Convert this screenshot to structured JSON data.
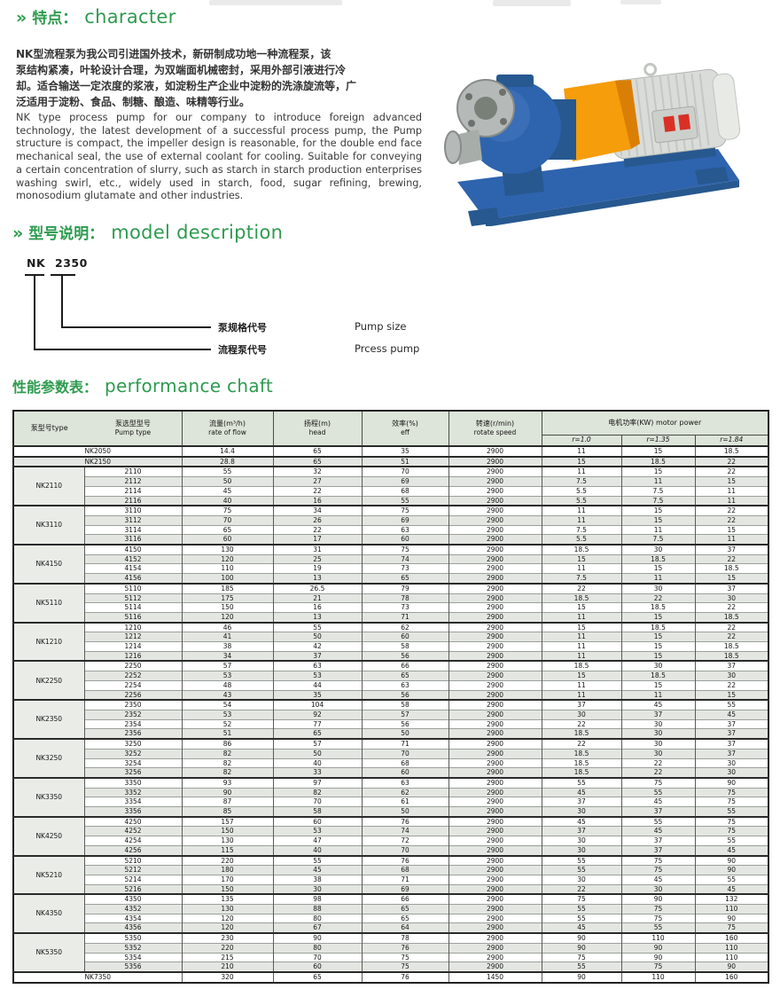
{
  "colors": {
    "heading_green": "#2e9b4f",
    "table_header_bg": "#dde4d9",
    "row_stripe": "#e4e7e1",
    "group_cell_bg": "#eaede7",
    "pump_blue": "#2e63ae",
    "pump_blue_dark": "#27588f",
    "guard_orange": "#f59d0a",
    "guard_orange_dark": "#d97f06",
    "motor_gray": "#d9dcd8",
    "flange_gray": "#b5bab8",
    "accent_red": "#d93025"
  },
  "sections": {
    "character": {
      "chevron": "»",
      "title_cn": "特点：",
      "title_en": "character",
      "cn_lines": [
        "NK型流程泵为我公司引进国外技术，新研制成功地一种流程泵，该",
        "泵结构紧凑，叶轮设计合理，为双端面机械密封，采用外部引液进行冷",
        "却。适合输送一定浓度的浆液，如淀粉生产企业中淀粉的洗涤旋流等，广",
        "泛适用于淀粉、食品、制糖、酿造、味精等行业。"
      ],
      "en_text": "NK type process pump for our company to introduce foreign advanced technology, the latest development of a successful process pump, the Pump structure is compact, the impeller design is reasonable, for the double end face mechanical seal, the use of external coolant for cooling. Suitable for conveying a certain concentration of slurry, such as starch in starch production enterprises washing swirl, etc., widely used in starch, food, sugar refining, brewing, monosodium glutamate and other industries."
    },
    "model_description": {
      "chevron": "»",
      "title_cn": "型号说明：",
      "title_en": "model description",
      "code_prefix": "NK",
      "code_number": "2350",
      "callouts": [
        {
          "cn": "泵规格代号",
          "en": "Pump size"
        },
        {
          "cn": "流程泵代号",
          "en": "Prcess pump"
        }
      ]
    },
    "performance": {
      "title_cn": "性能参数表：",
      "title_en": "performance chaft"
    }
  },
  "table": {
    "headers": {
      "pump_model": "泵型号type",
      "pump_type_cn": "泵选型型号",
      "pump_type_en": "Pump type",
      "flow_cn": "流量(m³/h)",
      "flow_en": "rate of flow",
      "head_cn": "扬程(m)",
      "head_en": "head",
      "eff_cn": "效率(%)",
      "eff_en": "eff",
      "speed_cn": "转速(r/min)",
      "speed_en": "rotate speed",
      "power_cn": "电机功率(KW) motor power",
      "power_subs": [
        "r=1.0",
        "r=1.35",
        "r=1.84"
      ]
    },
    "standalone_top": [
      {
        "model": "NK2050",
        "values": [
          "14.4",
          "65",
          "35",
          "2900",
          "11",
          "15",
          "18.5"
        ]
      },
      {
        "model": "NK2150",
        "values": [
          "28.8",
          "65",
          "51",
          "2900",
          "15",
          "18.5",
          "22"
        ]
      }
    ],
    "groups": [
      {
        "model": "NK2110",
        "rows": [
          [
            "2110",
            "55",
            "32",
            "70",
            "2900",
            "11",
            "15",
            "22"
          ],
          [
            "2112",
            "50",
            "27",
            "69",
            "2900",
            "7.5",
            "11",
            "15"
          ],
          [
            "2114",
            "45",
            "22",
            "68",
            "2900",
            "5.5",
            "7.5",
            "11"
          ],
          [
            "2116",
            "40",
            "16",
            "55",
            "2900",
            "5.5",
            "7.5",
            "11"
          ]
        ]
      },
      {
        "model": "NK3110",
        "rows": [
          [
            "3110",
            "75",
            "34",
            "75",
            "2900",
            "11",
            "15",
            "22"
          ],
          [
            "3112",
            "70",
            "26",
            "69",
            "2900",
            "11",
            "15",
            "22"
          ],
          [
            "3114",
            "65",
            "22",
            "63",
            "2900",
            "7.5",
            "11",
            "15"
          ],
          [
            "3116",
            "60",
            "17",
            "60",
            "2900",
            "5.5",
            "7.5",
            "11"
          ]
        ]
      },
      {
        "model": "NK4150",
        "rows": [
          [
            "4150",
            "130",
            "31",
            "75",
            "2900",
            "18.5",
            "30",
            "37"
          ],
          [
            "4152",
            "120",
            "25",
            "74",
            "2900",
            "15",
            "18.5",
            "22"
          ],
          [
            "4154",
            "110",
            "19",
            "73",
            "2900",
            "11",
            "15",
            "18.5"
          ],
          [
            "4156",
            "100",
            "13",
            "65",
            "2900",
            "7.5",
            "11",
            "15"
          ]
        ]
      },
      {
        "model": "NK5110",
        "rows": [
          [
            "5110",
            "185",
            "26.5",
            "79",
            "2900",
            "22",
            "30",
            "37"
          ],
          [
            "5112",
            "175",
            "21",
            "78",
            "2900",
            "18.5",
            "22",
            "30"
          ],
          [
            "5114",
            "150",
            "16",
            "73",
            "2900",
            "15",
            "18.5",
            "22"
          ],
          [
            "5116",
            "120",
            "13",
            "71",
            "2900",
            "11",
            "15",
            "18.5"
          ]
        ]
      },
      {
        "model": "NK1210",
        "rows": [
          [
            "1210",
            "46",
            "55",
            "62",
            "2900",
            "15",
            "18.5",
            "22"
          ],
          [
            "1212",
            "41",
            "50",
            "60",
            "2900",
            "11",
            "15",
            "22"
          ],
          [
            "1214",
            "38",
            "42",
            "58",
            "2900",
            "11",
            "15",
            "18.5"
          ],
          [
            "1216",
            "34",
            "37",
            "56",
            "2900",
            "11",
            "15",
            "18.5"
          ]
        ]
      },
      {
        "model": "NK2250",
        "rows": [
          [
            "2250",
            "57",
            "63",
            "66",
            "2900",
            "18.5",
            "30",
            "37"
          ],
          [
            "2252",
            "53",
            "53",
            "65",
            "2900",
            "15",
            "18.5",
            "30"
          ],
          [
            "2254",
            "48",
            "44",
            "63",
            "2900",
            "11",
            "15",
            "22"
          ],
          [
            "2256",
            "43",
            "35",
            "56",
            "2900",
            "11",
            "11",
            "15"
          ]
        ]
      },
      {
        "model": "NK2350",
        "rows": [
          [
            "2350",
            "54",
            "104",
            "58",
            "2900",
            "37",
            "45",
            "55"
          ],
          [
            "2352",
            "53",
            "92",
            "57",
            "2900",
            "30",
            "37",
            "45"
          ],
          [
            "2354",
            "52",
            "77",
            "56",
            "2900",
            "22",
            "30",
            "37"
          ],
          [
            "2356",
            "51",
            "65",
            "50",
            "2900",
            "18.5",
            "30",
            "37"
          ]
        ]
      },
      {
        "model": "NK3250",
        "rows": [
          [
            "3250",
            "86",
            "57",
            "71",
            "2900",
            "22",
            "30",
            "37"
          ],
          [
            "3252",
            "82",
            "50",
            "70",
            "2900",
            "18.5",
            "30",
            "37"
          ],
          [
            "3254",
            "82",
            "40",
            "68",
            "2900",
            "18.5",
            "22",
            "30"
          ],
          [
            "3256",
            "82",
            "33",
            "60",
            "2900",
            "18.5",
            "22",
            "30"
          ]
        ]
      },
      {
        "model": "NK3350",
        "rows": [
          [
            "3350",
            "93",
            "97",
            "63",
            "2900",
            "55",
            "75",
            "90"
          ],
          [
            "3352",
            "90",
            "82",
            "62",
            "2900",
            "45",
            "55",
            "75"
          ],
          [
            "3354",
            "87",
            "70",
            "61",
            "2900",
            "37",
            "45",
            "75"
          ],
          [
            "3356",
            "85",
            "58",
            "50",
            "2900",
            "30",
            "37",
            "55"
          ]
        ]
      },
      {
        "model": "NK4250",
        "rows": [
          [
            "4250",
            "157",
            "60",
            "76",
            "2900",
            "45",
            "55",
            "75"
          ],
          [
            "4252",
            "150",
            "53",
            "74",
            "2900",
            "37",
            "45",
            "75"
          ],
          [
            "4254",
            "130",
            "47",
            "72",
            "2900",
            "30",
            "37",
            "55"
          ],
          [
            "4256",
            "115",
            "40",
            "70",
            "2900",
            "30",
            "37",
            "45"
          ]
        ]
      },
      {
        "model": "NK5210",
        "rows": [
          [
            "5210",
            "220",
            "55",
            "76",
            "2900",
            "55",
            "75",
            "90"
          ],
          [
            "5212",
            "180",
            "45",
            "68",
            "2900",
            "55",
            "75",
            "90"
          ],
          [
            "5214",
            "170",
            "38",
            "71",
            "2900",
            "30",
            "45",
            "55"
          ],
          [
            "5216",
            "150",
            "30",
            "69",
            "2900",
            "22",
            "30",
            "45"
          ]
        ]
      },
      {
        "model": "NK4350",
        "rows": [
          [
            "4350",
            "135",
            "98",
            "66",
            "2900",
            "75",
            "90",
            "132"
          ],
          [
            "4352",
            "130",
            "88",
            "65",
            "2900",
            "55",
            "75",
            "110"
          ],
          [
            "4354",
            "120",
            "80",
            "65",
            "2900",
            "55",
            "75",
            "90"
          ],
          [
            "4356",
            "120",
            "67",
            "64",
            "2900",
            "45",
            "55",
            "75"
          ]
        ]
      },
      {
        "model": "NK5350",
        "rows": [
          [
            "5350",
            "230",
            "90",
            "78",
            "2900",
            "90",
            "110",
            "160"
          ],
          [
            "5352",
            "220",
            "80",
            "76",
            "2900",
            "90",
            "90",
            "110"
          ],
          [
            "5354",
            "215",
            "70",
            "75",
            "2900",
            "75",
            "90",
            "110"
          ],
          [
            "5356",
            "210",
            "60",
            "75",
            "2900",
            "55",
            "75",
            "90"
          ]
        ]
      }
    ],
    "standalone_bottom": [
      {
        "model": "NK7350",
        "values": [
          "320",
          "65",
          "76",
          "1450",
          "90",
          "110",
          "160"
        ]
      }
    ]
  }
}
